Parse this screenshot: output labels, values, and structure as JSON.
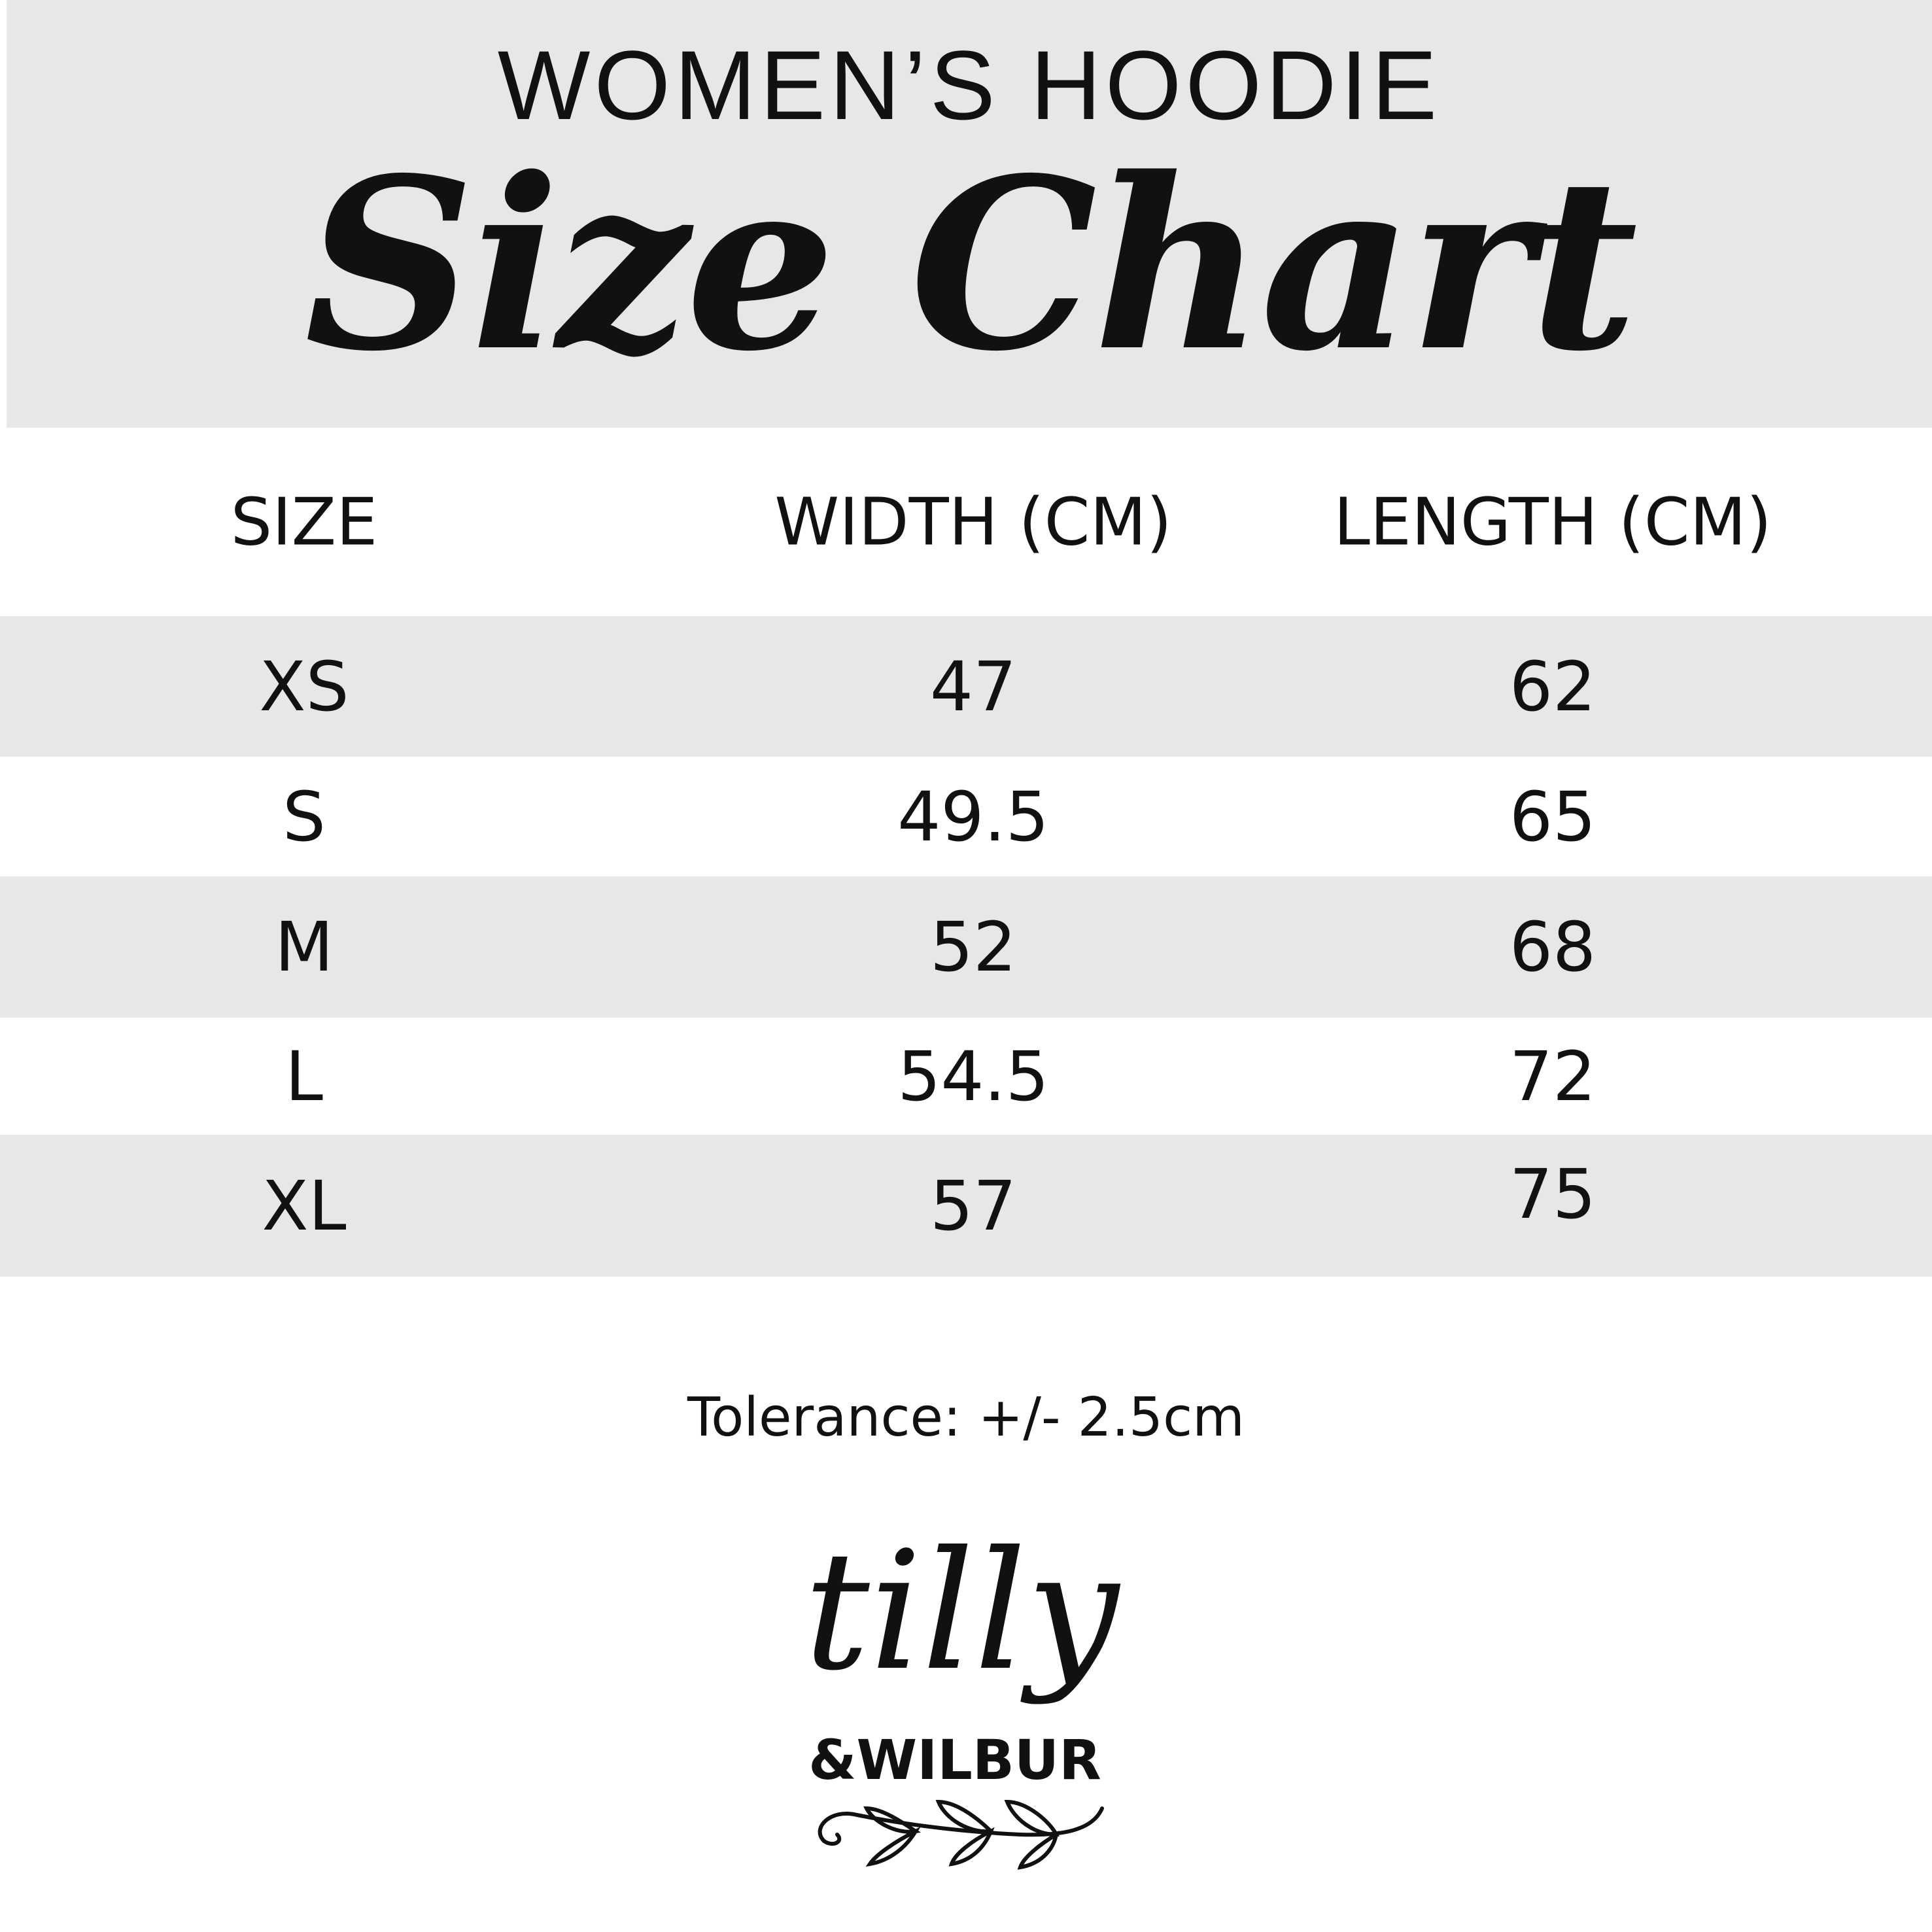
{
  "header": {
    "title": "WOMEN’S HOODIE",
    "subtitle": "Size Chart",
    "background": "#e6e7e9"
  },
  "table": {
    "columns": [
      "SIZE",
      "WIDTH (CM)",
      "LENGTH (CM)"
    ],
    "rows": [
      [
        "XS",
        "47",
        "62"
      ],
      [
        "S",
        "49.5",
        "65"
      ],
      [
        "M",
        "52",
        "68"
      ],
      [
        "L",
        "54.5",
        "72"
      ],
      [
        "XL",
        "57",
        "75"
      ]
    ]
  },
  "footer": {
    "tolerance": "Tolerance: +/- 2.5cm"
  },
  "logo": {
    "line1": "tilly",
    "line2": "&WILBUR"
  }
}
